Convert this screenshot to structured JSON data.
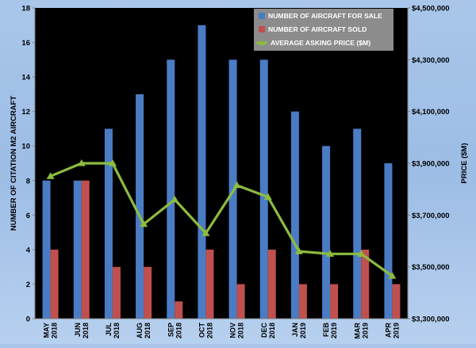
{
  "chart_data": {
    "type": "bar",
    "categories": [
      "MAY 2018",
      "JUN 2018",
      "JUL 2018",
      "AUG 2018",
      "SEP 2018",
      "OCT 2018",
      "NOV 2018",
      "DEC 2018",
      "JAN 2019",
      "FEB 2019",
      "MAR 2019",
      "APR 2019"
    ],
    "category_lines": [
      [
        "MAY",
        "2018"
      ],
      [
        "JUN",
        "2018"
      ],
      [
        "JUL",
        "2018"
      ],
      [
        "AUG",
        "2018"
      ],
      [
        "SEP",
        "2018"
      ],
      [
        "OCT",
        "2018"
      ],
      [
        "NOV",
        "2018"
      ],
      [
        "DEC",
        "2018"
      ],
      [
        "JAN",
        "2019"
      ],
      [
        "FEB",
        "2019"
      ],
      [
        "MAR",
        "2019"
      ],
      [
        "APR",
        "2019"
      ]
    ],
    "series": [
      {
        "name": "NUMBER OF AIRCRAFT FOR SALE",
        "kind": "bar",
        "axis": "left",
        "color": "#4a7cc4",
        "values": [
          8,
          8,
          11,
          13,
          15,
          17,
          15,
          15,
          12,
          10,
          11,
          9
        ]
      },
      {
        "name": "NUMBER OF AIRCRAFT SOLD",
        "kind": "bar",
        "axis": "left",
        "color": "#c0504d",
        "values": [
          4,
          8,
          3,
          3,
          1,
          4,
          2,
          4,
          2,
          2,
          4,
          2
        ]
      },
      {
        "name": "AVERAGE ASKING PRICE ($M)",
        "kind": "line",
        "axis": "right",
        "color": "#8dbb3f",
        "values": [
          3850000,
          3900000,
          3900000,
          3665000,
          3760000,
          3630000,
          3815000,
          3770000,
          3560000,
          3550000,
          3550000,
          3465000
        ]
      }
    ],
    "ylabel": "NUMBER OF CITATION M2 AIRCRAFT",
    "y2label": "PRICE ($M)",
    "ylim": [
      0,
      18
    ],
    "yticks": [
      "0",
      "2",
      "4",
      "6",
      "8",
      "10",
      "12",
      "14",
      "16",
      "18"
    ],
    "y2lim": [
      3300000,
      4500000
    ],
    "y2ticks": [
      "$3,300,000",
      "$3,500,000",
      "$3,700,000",
      "$3,900,000",
      "$4,100,000",
      "$4,300,000",
      "$4,500,000"
    ],
    "grid": false,
    "legend_position": "top-right",
    "colors": {
      "plot_background": "#000000",
      "text": "#000000",
      "legend_text": "#ffffff",
      "legend_background": "#8c8c8c"
    }
  }
}
